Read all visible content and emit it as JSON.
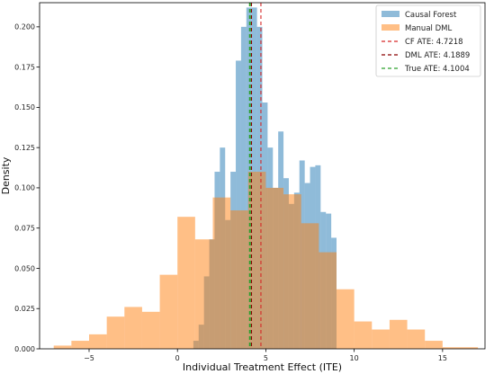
{
  "chart_data": {
    "type": "histogram",
    "xlabel": "Individual Treatment Effect (ITE)",
    "ylabel": "Density",
    "xlim": [
      -7.8,
      17.4
    ],
    "ylim": [
      0,
      0.215
    ],
    "xticks": [
      -5,
      0,
      5,
      10,
      15
    ],
    "yticks": [
      0.0,
      0.025,
      0.05,
      0.075,
      0.1,
      0.125,
      0.15,
      0.175,
      0.2
    ],
    "ytick_labels": [
      "0.000",
      "0.025",
      "0.050",
      "0.075",
      "0.100",
      "0.125",
      "0.150",
      "0.175",
      "0.200"
    ],
    "grid": false,
    "legend_position": "top-right",
    "series": [
      {
        "name": "Causal Forest",
        "color": "#1f77b4",
        "opacity": 0.5,
        "bins": [
          [
            0.9,
            1.2,
            0.005
          ],
          [
            1.2,
            1.5,
            0.015
          ],
          [
            1.5,
            1.8,
            0.045
          ],
          [
            1.8,
            2.1,
            0.068
          ],
          [
            2.1,
            2.4,
            0.11
          ],
          [
            2.4,
            2.7,
            0.125
          ],
          [
            2.7,
            3.0,
            0.08
          ],
          [
            3.0,
            3.3,
            0.11
          ],
          [
            3.3,
            3.6,
            0.179
          ],
          [
            3.6,
            3.9,
            0.2
          ],
          [
            3.9,
            4.2,
            0.212
          ],
          [
            4.2,
            4.5,
            0.212
          ],
          [
            4.5,
            4.8,
            0.2
          ],
          [
            4.8,
            5.1,
            0.153
          ],
          [
            5.1,
            5.4,
            0.125
          ],
          [
            5.4,
            5.7,
            0.1
          ],
          [
            5.7,
            6.0,
            0.135
          ],
          [
            6.0,
            6.3,
            0.106
          ],
          [
            6.3,
            6.6,
            0.09
          ],
          [
            6.6,
            6.9,
            0.097
          ],
          [
            6.9,
            7.2,
            0.117
          ],
          [
            7.2,
            7.5,
            0.103
          ],
          [
            7.5,
            7.8,
            0.113
          ],
          [
            7.8,
            8.1,
            0.114
          ],
          [
            8.1,
            8.4,
            0.085
          ],
          [
            8.4,
            8.7,
            0.084
          ],
          [
            8.7,
            9.0,
            0.069
          ]
        ]
      },
      {
        "name": "Manual DML",
        "color": "#ff7f0e",
        "opacity": 0.5,
        "bins": [
          [
            -7.0,
            -6.0,
            0.002
          ],
          [
            -6.0,
            -5.0,
            0.005
          ],
          [
            -5.0,
            -4.0,
            0.009
          ],
          [
            -4.0,
            -3.0,
            0.02
          ],
          [
            -3.0,
            -2.0,
            0.026
          ],
          [
            -2.0,
            -1.0,
            0.023
          ],
          [
            -1.0,
            0.0,
            0.046
          ],
          [
            0.0,
            1.0,
            0.082
          ],
          [
            1.0,
            2.0,
            0.068
          ],
          [
            2.0,
            3.0,
            0.094
          ],
          [
            3.0,
            4.0,
            0.086
          ],
          [
            4.0,
            5.0,
            0.11
          ],
          [
            5.0,
            6.0,
            0.1
          ],
          [
            6.0,
            7.0,
            0.096
          ],
          [
            7.0,
            8.0,
            0.078
          ],
          [
            8.0,
            9.0,
            0.06
          ],
          [
            9.0,
            10.0,
            0.037
          ],
          [
            10.0,
            11.0,
            0.017
          ],
          [
            11.0,
            12.0,
            0.012
          ],
          [
            12.0,
            13.0,
            0.018
          ],
          [
            13.0,
            14.0,
            0.012
          ],
          [
            14.0,
            15.0,
            0.005
          ],
          [
            15.0,
            16.0,
            0.001
          ],
          [
            16.0,
            17.0,
            0.001
          ]
        ]
      }
    ],
    "reference_lines": [
      {
        "name": "CF ATE: 4.7218",
        "x": 4.7218,
        "color": "#d62728"
      },
      {
        "name": "DML ATE: 4.1889",
        "x": 4.1889,
        "color": "#8b0000"
      },
      {
        "name": "True ATE: 4.1004",
        "x": 4.1004,
        "color": "#2ca02c"
      }
    ]
  }
}
